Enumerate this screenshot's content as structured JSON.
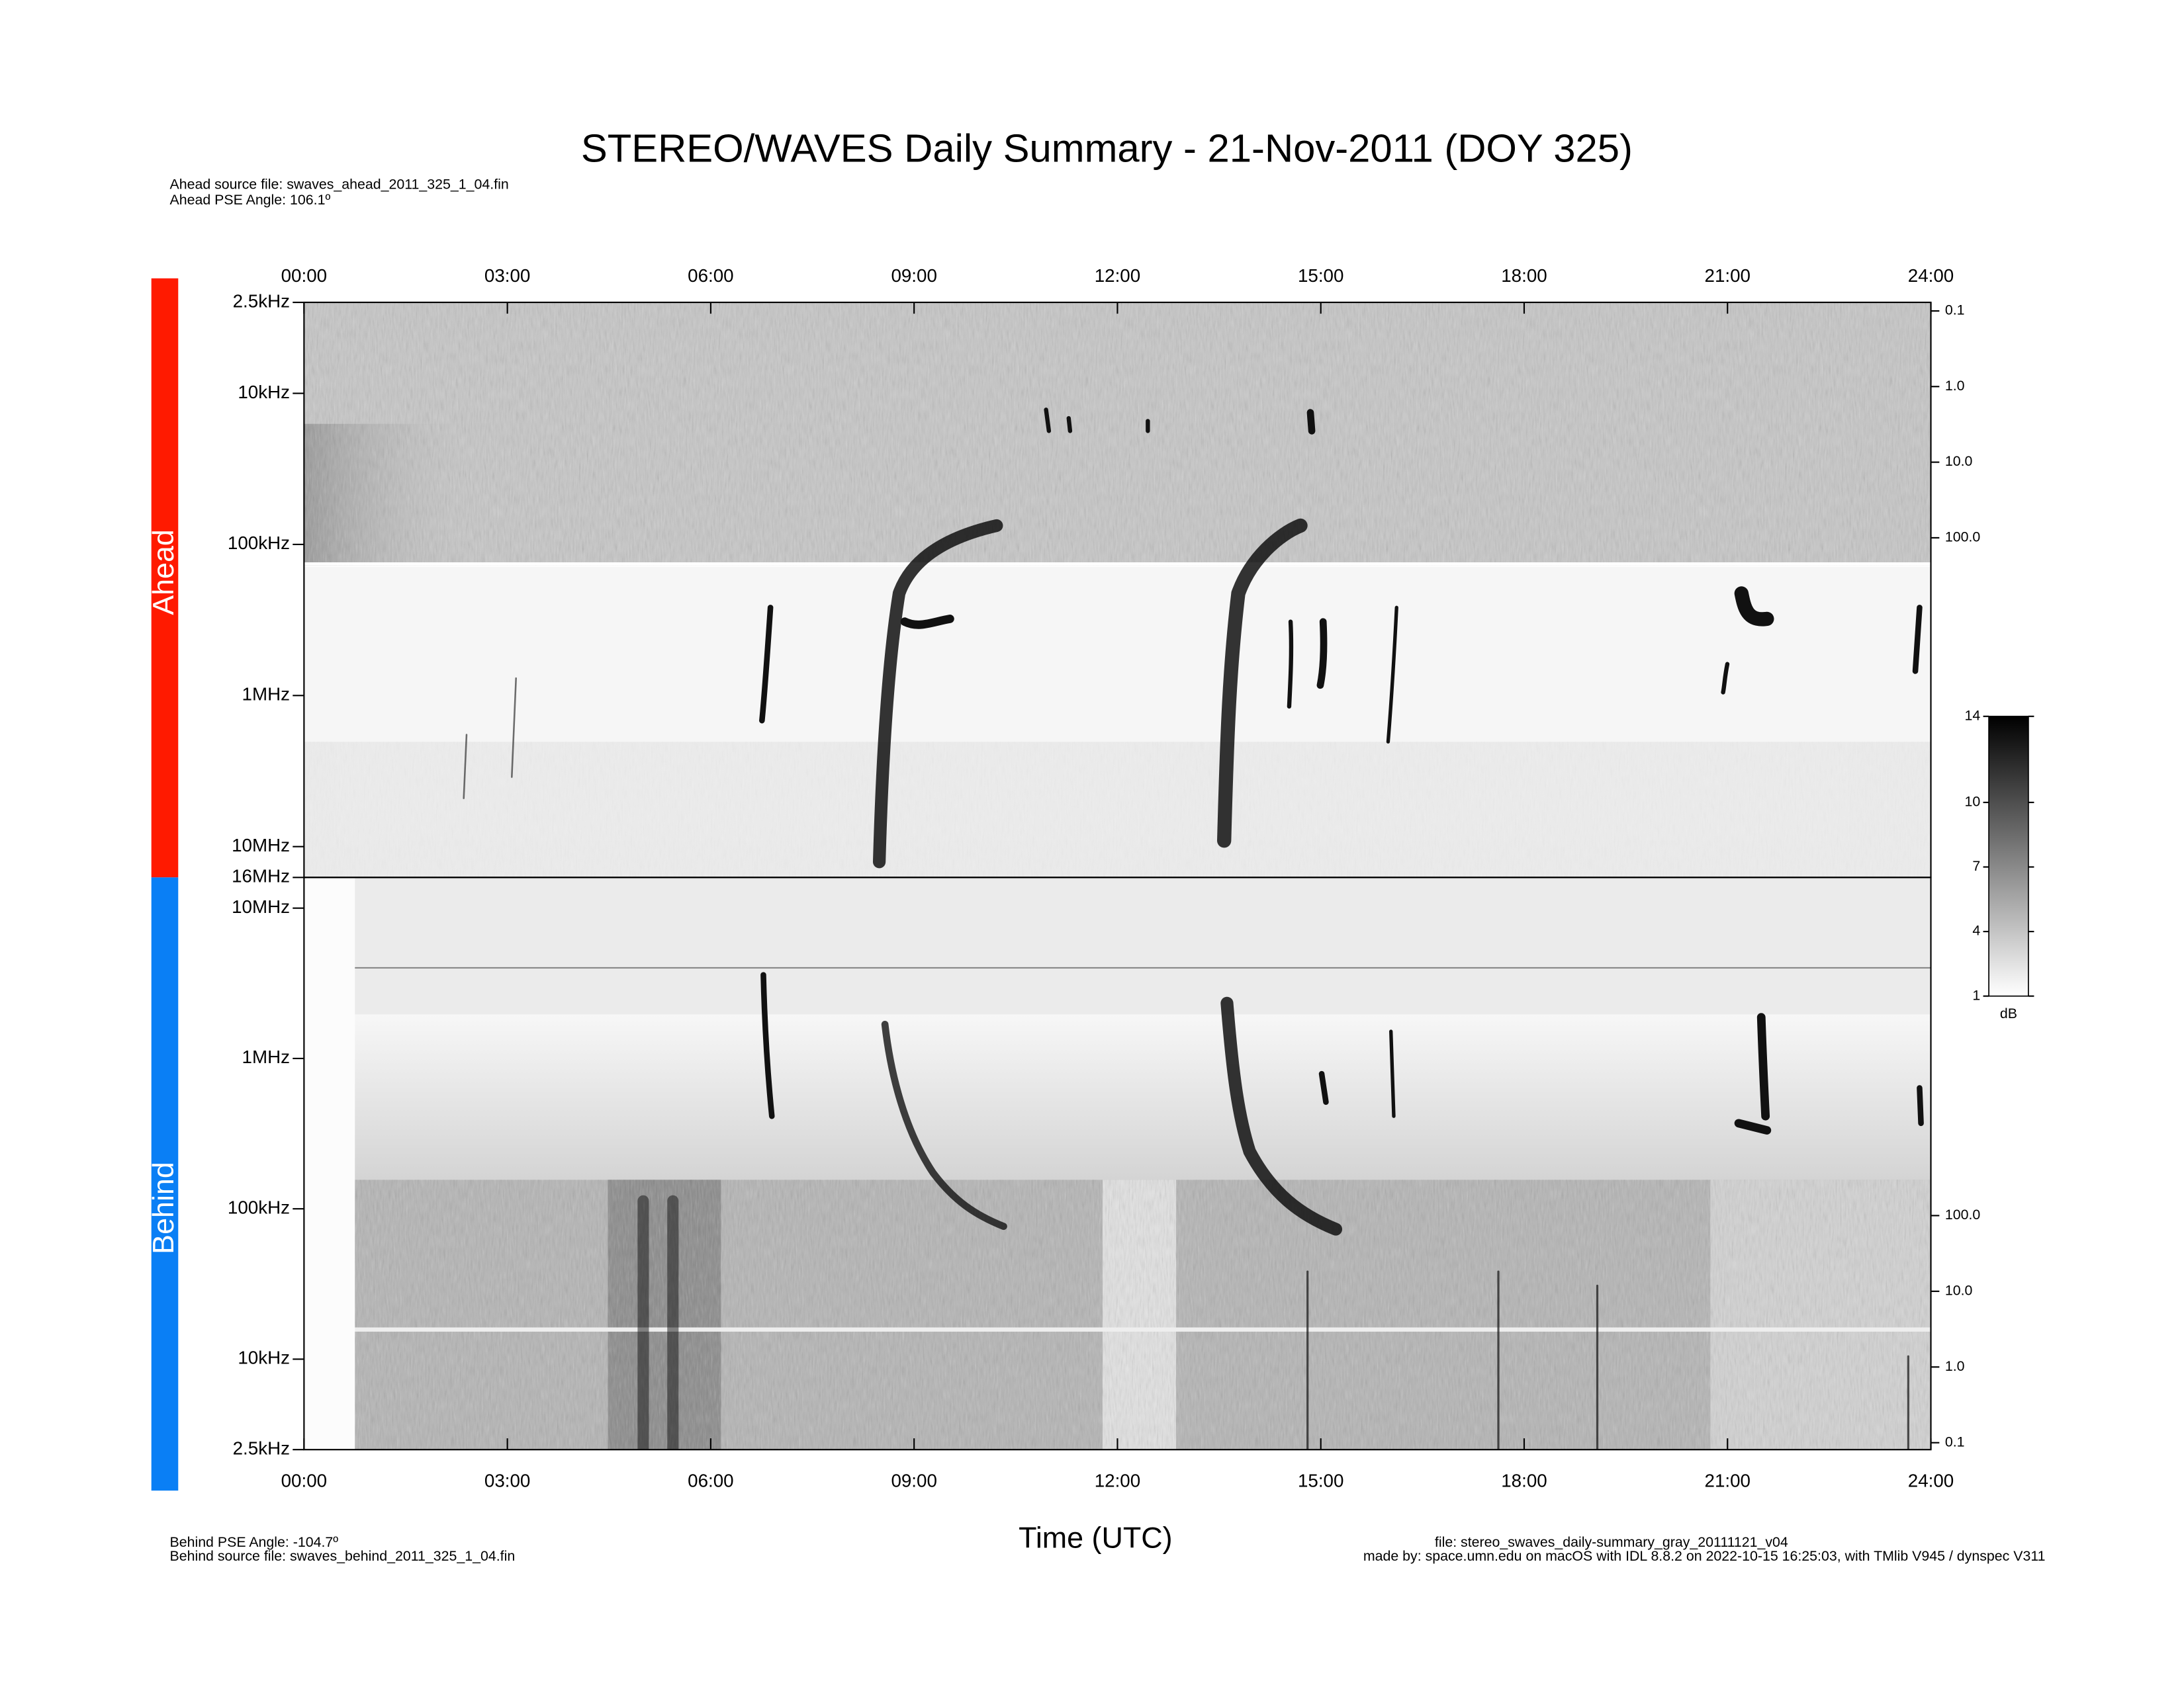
{
  "chart_data": {
    "type": "spectrogram",
    "title": "STEREO/WAVES Daily Summary - 21-Nov-2011 (DOY 325)",
    "header_lines": [
      "Ahead source file: swaves_ahead_2011_325_1_04.fin",
      "Ahead PSE Angle:  106.1º"
    ],
    "footer_left": [
      "Behind PSE Angle: -104.7º",
      "Behind source file: swaves_behind_2011_325_1_04.fin"
    ],
    "footer_right": [
      "file: stereo_swaves_daily-summary_gray_20111121_v04",
      "made by: space.umn.edu on macOS with IDL 8.8.2 on 2022-10-15 16:25:03, with TMlib V945 / dynspec V311"
    ],
    "xlabel": "Time (UTC)",
    "xlim": [
      0,
      24
    ],
    "xticks": [
      {
        "value": 0,
        "label": "00:00"
      },
      {
        "value": 3,
        "label": "03:00"
      },
      {
        "value": 6,
        "label": "06:00"
      },
      {
        "value": 9,
        "label": "09:00"
      },
      {
        "value": 12,
        "label": "12:00"
      },
      {
        "value": 15,
        "label": "15:00"
      },
      {
        "value": 18,
        "label": "18:00"
      },
      {
        "value": 21,
        "label": "21:00"
      },
      {
        "value": 24,
        "label": "24:00"
      }
    ],
    "colorbar": {
      "label": "dB",
      "clim": [
        1,
        14
      ],
      "ticks": [
        1,
        4,
        7,
        10,
        14
      ],
      "colors": [
        "#ffffff",
        "#000000"
      ]
    },
    "panels": [
      {
        "name": "Ahead",
        "color": "#ff1a00",
        "yscale": "log",
        "ylim": [
          16000000,
          2500
        ],
        "yticks": [
          {
            "value": 2500,
            "label": "2.5kHz"
          },
          {
            "value": 10000,
            "label": "10kHz"
          },
          {
            "value": 100000,
            "label": "100kHz"
          },
          {
            "value": 1000000,
            "label": "1MHz"
          },
          {
            "value": 10000000,
            "label": "10MHz"
          },
          {
            "value": 16000000,
            "label": "16MHz"
          }
        ],
        "y2lim": [
          3100000,
          0.077
        ],
        "y2ticks": [
          0.1,
          {
            "value": 1,
            "label": "1.0"
          },
          {
            "value": 10,
            "label": "10.0"
          },
          {
            "value": 100,
            "label": "100.0"
          }
        ]
      },
      {
        "name": "Behind",
        "color": "#0a7ff5",
        "yscale": "log",
        "ylim": [
          2500,
          16000000
        ],
        "yticks": [
          {
            "value": 10000000,
            "label": "10MHz"
          },
          {
            "value": 1000000,
            "label": "1MHz"
          },
          {
            "value": 100000,
            "label": "100kHz"
          },
          {
            "value": 10000,
            "label": "10kHz"
          },
          {
            "value": 2500,
            "label": "2.5kHz"
          }
        ],
        "y2lim": [
          0.081,
          2930000
        ],
        "y2ticks": [
          {
            "value": 100,
            "label": "100.0"
          },
          {
            "value": 10,
            "label": "10.0"
          },
          {
            "value": 1,
            "label": "1.0"
          },
          0.1
        ]
      }
    ]
  }
}
